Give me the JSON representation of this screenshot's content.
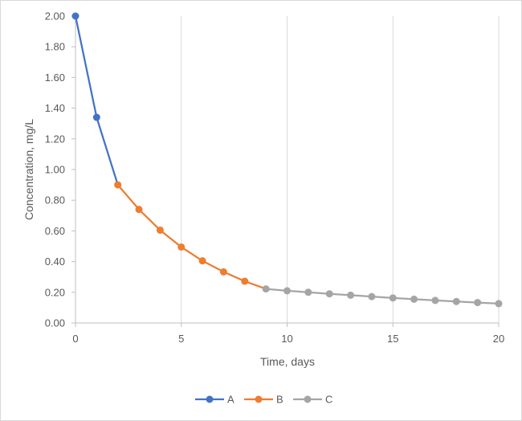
{
  "chart_data": {
    "type": "line",
    "title": "",
    "xlabel": "Time, days",
    "ylabel": "Concentration, mg/L",
    "xlim": [
      0,
      20
    ],
    "ylim": [
      0,
      2
    ],
    "x_ticks": [
      "0",
      "5",
      "10",
      "15",
      "20"
    ],
    "y_ticks": [
      "0.00",
      "0.20",
      "0.40",
      "0.60",
      "0.80",
      "1.00",
      "1.20",
      "1.40",
      "1.60",
      "1.80",
      "2.00"
    ],
    "grid": "vertical",
    "legend_position": "bottom",
    "series": [
      {
        "name": "A",
        "color": "#4472C4",
        "points": [
          [
            0,
            2.0
          ],
          [
            1,
            1.34
          ],
          [
            2,
            0.9
          ]
        ],
        "marker_x": [
          0,
          1
        ]
      },
      {
        "name": "B",
        "color": "#ED7D31",
        "points": [
          [
            2,
            0.9
          ],
          [
            3,
            0.74
          ],
          [
            4,
            0.605
          ],
          [
            5,
            0.495
          ],
          [
            6,
            0.405
          ],
          [
            7,
            0.333
          ],
          [
            8,
            0.272
          ],
          [
            9,
            0.222
          ]
        ],
        "marker_x": [
          2,
          3,
          4,
          5,
          6,
          7,
          8
        ]
      },
      {
        "name": "C",
        "color": "#A5A5A5",
        "points": [
          [
            9,
            0.222
          ],
          [
            10,
            0.21
          ],
          [
            11,
            0.2
          ],
          [
            12,
            0.19
          ],
          [
            13,
            0.181
          ],
          [
            14,
            0.172
          ],
          [
            15,
            0.163
          ],
          [
            16,
            0.155
          ],
          [
            17,
            0.147
          ],
          [
            18,
            0.14
          ],
          [
            19,
            0.133
          ],
          [
            20,
            0.126
          ]
        ],
        "marker_x": [
          9,
          10,
          11,
          12,
          13,
          14,
          15,
          16,
          17,
          18,
          19,
          20
        ]
      }
    ]
  }
}
